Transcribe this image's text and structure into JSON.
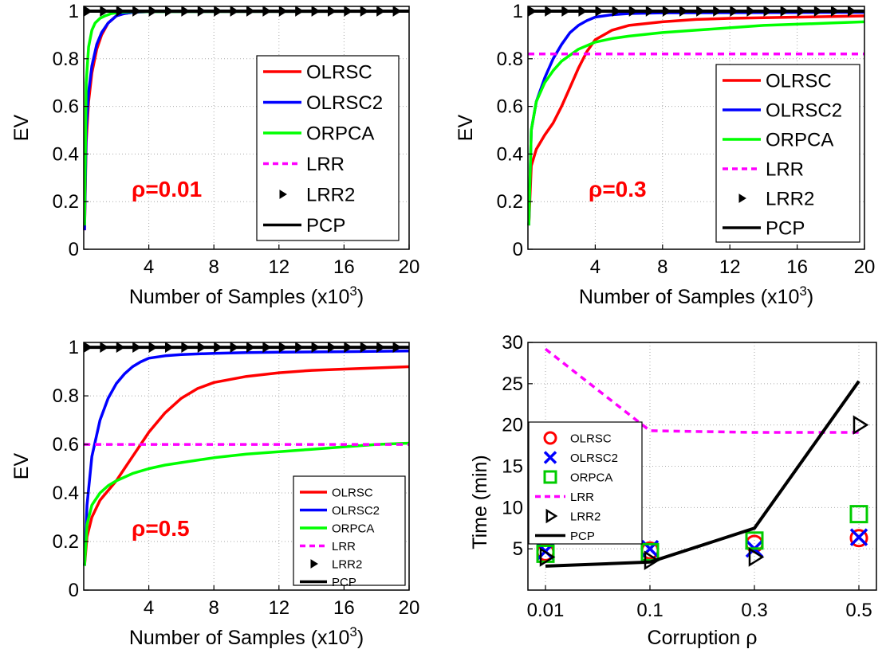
{
  "chart_data": [
    {
      "type": "line",
      "xlabel": "Number of Samples (x10",
      "xlabel_sup": "3",
      "xlabel_close": ")",
      "ylabel": "EV",
      "annotation": "ρ=0.01",
      "xlim": [
        0,
        20
      ],
      "ylim": [
        0,
        1.02
      ],
      "xticks": [
        4,
        8,
        12,
        16,
        20
      ],
      "xtick_labels": [
        "4",
        "8",
        "12",
        "16",
        "20"
      ],
      "yticks": [
        0,
        0.2,
        0.4,
        0.6,
        0.8,
        1
      ],
      "ytick_labels": [
        "0",
        "0.2",
        "0.4",
        "0.6",
        "0.8",
        "1"
      ],
      "grid": true,
      "legend_placement": "right",
      "series": [
        {
          "name": "OLRSC",
          "style": "line",
          "color": "#ff0000",
          "x": [
            0.05,
            0.15,
            0.3,
            0.5,
            0.8,
            1.1,
            1.5,
            2,
            2.5,
            3,
            4,
            20
          ],
          "y": [
            0.08,
            0.45,
            0.62,
            0.74,
            0.84,
            0.9,
            0.95,
            0.98,
            0.99,
            0.995,
            0.998,
            0.999
          ]
        },
        {
          "name": "OLRSC2",
          "style": "line",
          "color": "#0000ff",
          "x": [
            0.05,
            0.15,
            0.3,
            0.5,
            0.8,
            1.1,
            1.5,
            2,
            2.5,
            3,
            4,
            20
          ],
          "y": [
            0.08,
            0.5,
            0.66,
            0.77,
            0.86,
            0.91,
            0.95,
            0.98,
            0.99,
            0.995,
            0.998,
            0.999
          ]
        },
        {
          "name": "ORPCA",
          "style": "line",
          "color": "#00ff00",
          "x": [
            0.05,
            0.15,
            0.3,
            0.5,
            0.7,
            1,
            1.3,
            1.7,
            2.2,
            3,
            20
          ],
          "y": [
            0.1,
            0.7,
            0.85,
            0.92,
            0.95,
            0.97,
            0.98,
            0.99,
            0.995,
            0.998,
            0.999
          ]
        },
        {
          "name": "LRR",
          "style": "dashed",
          "color": "#ff00ff",
          "x": [
            0,
            20
          ],
          "y": [
            1.0,
            1.0
          ]
        },
        {
          "name": "LRR2",
          "style": "marker-triangle",
          "color": "#000000",
          "x": [
            0.2,
            1.2,
            2.2,
            3.2,
            4.2,
            5.2,
            6.2,
            7.2,
            8.2,
            9.2,
            10.2,
            11.2,
            12.2,
            13.2,
            14.2,
            15.2,
            16.2,
            17.2,
            18.2,
            19.2
          ],
          "y": [
            1,
            1,
            1,
            1,
            1,
            1,
            1,
            1,
            1,
            1,
            1,
            1,
            1,
            1,
            1,
            1,
            1,
            1,
            1,
            1
          ]
        },
        {
          "name": "PCP",
          "style": "line",
          "color": "#000000",
          "x": [
            0,
            20
          ],
          "y": [
            1.0,
            1.0
          ]
        }
      ]
    },
    {
      "type": "line",
      "xlabel": "Number of Samples (x10",
      "xlabel_sup": "3",
      "xlabel_close": ")",
      "ylabel": "EV",
      "annotation": "ρ=0.3",
      "xlim": [
        0,
        20
      ],
      "ylim": [
        0,
        1.02
      ],
      "xticks": [
        4,
        8,
        12,
        16,
        20
      ],
      "xtick_labels": [
        "4",
        "8",
        "12",
        "16",
        "20"
      ],
      "yticks": [
        0,
        0.2,
        0.4,
        0.6,
        0.8,
        1
      ],
      "ytick_labels": [
        "0",
        "0.2",
        "0.4",
        "0.6",
        "0.8",
        "1"
      ],
      "grid": true,
      "legend_placement": "right",
      "series": [
        {
          "name": "OLRSC",
          "style": "line",
          "color": "#ff0000",
          "x": [
            0.05,
            0.2,
            0.5,
            1,
            1.5,
            2,
            2.5,
            3,
            3.5,
            4,
            5,
            6,
            8,
            10,
            12,
            16,
            20
          ],
          "y": [
            0.1,
            0.35,
            0.42,
            0.48,
            0.53,
            0.6,
            0.68,
            0.76,
            0.83,
            0.88,
            0.92,
            0.94,
            0.955,
            0.965,
            0.97,
            0.975,
            0.98
          ]
        },
        {
          "name": "OLRSC2",
          "style": "line",
          "color": "#0000ff",
          "x": [
            0.05,
            0.2,
            0.5,
            1,
            1.5,
            2,
            2.5,
            3,
            3.5,
            4,
            5,
            6,
            8,
            20
          ],
          "y": [
            0.1,
            0.5,
            0.62,
            0.72,
            0.8,
            0.86,
            0.91,
            0.94,
            0.96,
            0.975,
            0.985,
            0.99,
            0.993,
            0.995
          ]
        },
        {
          "name": "ORPCA",
          "style": "line",
          "color": "#00ff00",
          "x": [
            0.05,
            0.2,
            0.5,
            1,
            1.5,
            2,
            3,
            4,
            5,
            6,
            8,
            10,
            12,
            14,
            16,
            18,
            20
          ],
          "y": [
            0.1,
            0.5,
            0.62,
            0.7,
            0.75,
            0.79,
            0.84,
            0.87,
            0.885,
            0.895,
            0.91,
            0.92,
            0.93,
            0.94,
            0.945,
            0.95,
            0.955
          ]
        },
        {
          "name": "LRR",
          "style": "dashed",
          "color": "#ff00ff",
          "x": [
            0,
            20
          ],
          "y": [
            0.82,
            0.82
          ]
        },
        {
          "name": "LRR2",
          "style": "marker-triangle",
          "color": "#000000",
          "x": [
            0.2,
            1.2,
            2.2,
            3.2,
            4.2,
            5.2,
            6.2,
            7.2,
            8.2,
            9.2,
            10.2,
            11.2,
            12.2,
            13.2,
            14.2,
            15.2,
            16.2,
            17.2,
            18.2,
            19.2
          ],
          "y": [
            1,
            1,
            1,
            1,
            1,
            1,
            1,
            1,
            1,
            1,
            1,
            1,
            1,
            1,
            1,
            1,
            1,
            1,
            1,
            1
          ]
        },
        {
          "name": "PCP",
          "style": "line",
          "color": "#000000",
          "x": [
            0,
            20
          ],
          "y": [
            1.0,
            1.0
          ]
        }
      ]
    },
    {
      "type": "line",
      "xlabel": "Number of Samples (x10",
      "xlabel_sup": "3",
      "xlabel_close": ")",
      "ylabel": "EV",
      "annotation": "ρ=0.5",
      "xlim": [
        0,
        20
      ],
      "ylim": [
        0,
        1.02
      ],
      "xticks": [
        4,
        8,
        12,
        16,
        20
      ],
      "xtick_labels": [
        "4",
        "8",
        "12",
        "16",
        "20"
      ],
      "yticks": [
        0,
        0.2,
        0.4,
        0.6,
        0.8,
        1
      ],
      "ytick_labels": [
        "0",
        "0.2",
        "0.4",
        "0.6",
        "0.8",
        "1"
      ],
      "grid": true,
      "legend_placement": "bottom-right",
      "series": [
        {
          "name": "OLRSC",
          "style": "line",
          "color": "#ff0000",
          "x": [
            0.05,
            0.2,
            0.5,
            1,
            1.5,
            2,
            2.5,
            3,
            3.5,
            4,
            5,
            6,
            7,
            8,
            10,
            12,
            14,
            16,
            18,
            20
          ],
          "y": [
            0.1,
            0.22,
            0.3,
            0.37,
            0.41,
            0.45,
            0.5,
            0.55,
            0.6,
            0.65,
            0.73,
            0.79,
            0.83,
            0.855,
            0.88,
            0.895,
            0.905,
            0.91,
            0.915,
            0.92
          ]
        },
        {
          "name": "OLRSC2",
          "style": "line",
          "color": "#0000ff",
          "x": [
            0.05,
            0.2,
            0.5,
            1,
            1.5,
            2,
            2.5,
            3,
            3.5,
            4,
            5,
            6,
            8,
            10,
            12,
            16,
            20
          ],
          "y": [
            0.1,
            0.35,
            0.55,
            0.7,
            0.79,
            0.85,
            0.89,
            0.92,
            0.94,
            0.955,
            0.965,
            0.97,
            0.975,
            0.978,
            0.98,
            0.982,
            0.985
          ]
        },
        {
          "name": "ORPCA",
          "style": "line",
          "color": "#00ff00",
          "x": [
            0.05,
            0.2,
            0.5,
            1,
            1.5,
            2,
            3,
            4,
            5,
            6,
            8,
            10,
            12,
            14,
            16,
            18,
            20
          ],
          "y": [
            0.1,
            0.27,
            0.35,
            0.4,
            0.43,
            0.45,
            0.48,
            0.5,
            0.515,
            0.525,
            0.545,
            0.56,
            0.57,
            0.58,
            0.59,
            0.6,
            0.605
          ]
        },
        {
          "name": "LRR",
          "style": "dashed",
          "color": "#ff00ff",
          "x": [
            0,
            20
          ],
          "y": [
            0.6,
            0.6
          ]
        },
        {
          "name": "LRR2",
          "style": "marker-triangle",
          "color": "#000000",
          "x": [
            0.2,
            1.2,
            2.2,
            3.2,
            4.2,
            5.2,
            6.2,
            7.2,
            8.2,
            9.2,
            10.2,
            11.2,
            12.2,
            13.2,
            14.2,
            15.2,
            16.2,
            17.2,
            18.2,
            19.2
          ],
          "y": [
            1,
            1,
            1,
            1,
            1,
            1,
            1,
            1,
            1,
            1,
            1,
            1,
            1,
            1,
            1,
            1,
            1,
            1,
            1,
            1
          ]
        },
        {
          "name": "PCP",
          "style": "line",
          "color": "#000000",
          "x": [
            0,
            20
          ],
          "y": [
            1.0,
            1.0
          ]
        }
      ]
    },
    {
      "type": "line",
      "xlabel": "Corruption ρ",
      "ylabel": "Time (min)",
      "categories": [
        "0.01",
        "0.1",
        "0.3",
        "0.5"
      ],
      "ylim": [
        0,
        30
      ],
      "yticks": [
        5,
        10,
        15,
        20,
        25,
        30
      ],
      "ytick_labels": [
        "5",
        "10",
        "15",
        "20",
        "25",
        "30"
      ],
      "grid": true,
      "legend_placement": "left",
      "series": [
        {
          "name": "OLRSC",
          "style": "marker-circle",
          "color": "#ff0000",
          "values": [
            4.6,
            4.8,
            5.6,
            6.3
          ]
        },
        {
          "name": "OLRSC2",
          "style": "marker-x",
          "color": "#0000ff",
          "values": [
            4.7,
            5.0,
            5.0,
            6.4
          ]
        },
        {
          "name": "ORPCA",
          "style": "marker-square",
          "color": "#00cc00",
          "values": [
            4.4,
            4.6,
            6.0,
            9.2
          ]
        },
        {
          "name": "LRR",
          "style": "dashed",
          "color": "#ff00ff",
          "values": [
            29.2,
            19.3,
            19.1,
            19.1
          ]
        },
        {
          "name": "LRR2",
          "style": "marker-triangle-open",
          "color": "#000000",
          "values": [
            4.0,
            3.6,
            4.0,
            20.0
          ]
        },
        {
          "name": "PCP",
          "style": "line",
          "color": "#000000",
          "values": [
            2.9,
            3.4,
            7.5,
            25.3
          ]
        }
      ]
    }
  ]
}
